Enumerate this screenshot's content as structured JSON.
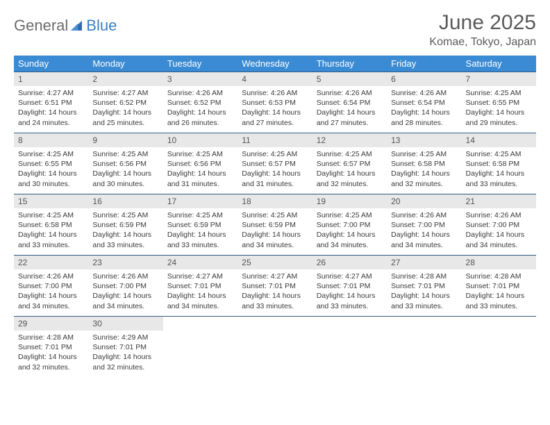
{
  "logo": {
    "general": "General",
    "blue": "Blue"
  },
  "title": "June 2025",
  "location": "Komae, Tokyo, Japan",
  "day_headers": [
    "Sunday",
    "Monday",
    "Tuesday",
    "Wednesday",
    "Thursday",
    "Friday",
    "Saturday"
  ],
  "colors": {
    "header_bg": "#3b8bd4",
    "header_text": "#ffffff",
    "row_border": "#2f5b84",
    "daynum_bg": "#e8e8e8",
    "body_text": "#3a3a3a",
    "title_text": "#5a5a5a",
    "logo_gray": "#6b6b6b",
    "logo_blue": "#3b7fc4"
  },
  "weeks": [
    [
      {
        "n": 1,
        "sunrise": "4:27 AM",
        "sunset": "6:51 PM",
        "daylight": "14 hours and 24 minutes."
      },
      {
        "n": 2,
        "sunrise": "4:27 AM",
        "sunset": "6:52 PM",
        "daylight": "14 hours and 25 minutes."
      },
      {
        "n": 3,
        "sunrise": "4:26 AM",
        "sunset": "6:52 PM",
        "daylight": "14 hours and 26 minutes."
      },
      {
        "n": 4,
        "sunrise": "4:26 AM",
        "sunset": "6:53 PM",
        "daylight": "14 hours and 27 minutes."
      },
      {
        "n": 5,
        "sunrise": "4:26 AM",
        "sunset": "6:54 PM",
        "daylight": "14 hours and 27 minutes."
      },
      {
        "n": 6,
        "sunrise": "4:26 AM",
        "sunset": "6:54 PM",
        "daylight": "14 hours and 28 minutes."
      },
      {
        "n": 7,
        "sunrise": "4:25 AM",
        "sunset": "6:55 PM",
        "daylight": "14 hours and 29 minutes."
      }
    ],
    [
      {
        "n": 8,
        "sunrise": "4:25 AM",
        "sunset": "6:55 PM",
        "daylight": "14 hours and 30 minutes."
      },
      {
        "n": 9,
        "sunrise": "4:25 AM",
        "sunset": "6:56 PM",
        "daylight": "14 hours and 30 minutes."
      },
      {
        "n": 10,
        "sunrise": "4:25 AM",
        "sunset": "6:56 PM",
        "daylight": "14 hours and 31 minutes."
      },
      {
        "n": 11,
        "sunrise": "4:25 AM",
        "sunset": "6:57 PM",
        "daylight": "14 hours and 31 minutes."
      },
      {
        "n": 12,
        "sunrise": "4:25 AM",
        "sunset": "6:57 PM",
        "daylight": "14 hours and 32 minutes."
      },
      {
        "n": 13,
        "sunrise": "4:25 AM",
        "sunset": "6:58 PM",
        "daylight": "14 hours and 32 minutes."
      },
      {
        "n": 14,
        "sunrise": "4:25 AM",
        "sunset": "6:58 PM",
        "daylight": "14 hours and 33 minutes."
      }
    ],
    [
      {
        "n": 15,
        "sunrise": "4:25 AM",
        "sunset": "6:58 PM",
        "daylight": "14 hours and 33 minutes."
      },
      {
        "n": 16,
        "sunrise": "4:25 AM",
        "sunset": "6:59 PM",
        "daylight": "14 hours and 33 minutes."
      },
      {
        "n": 17,
        "sunrise": "4:25 AM",
        "sunset": "6:59 PM",
        "daylight": "14 hours and 33 minutes."
      },
      {
        "n": 18,
        "sunrise": "4:25 AM",
        "sunset": "6:59 PM",
        "daylight": "14 hours and 34 minutes."
      },
      {
        "n": 19,
        "sunrise": "4:25 AM",
        "sunset": "7:00 PM",
        "daylight": "14 hours and 34 minutes."
      },
      {
        "n": 20,
        "sunrise": "4:26 AM",
        "sunset": "7:00 PM",
        "daylight": "14 hours and 34 minutes."
      },
      {
        "n": 21,
        "sunrise": "4:26 AM",
        "sunset": "7:00 PM",
        "daylight": "14 hours and 34 minutes."
      }
    ],
    [
      {
        "n": 22,
        "sunrise": "4:26 AM",
        "sunset": "7:00 PM",
        "daylight": "14 hours and 34 minutes."
      },
      {
        "n": 23,
        "sunrise": "4:26 AM",
        "sunset": "7:00 PM",
        "daylight": "14 hours and 34 minutes."
      },
      {
        "n": 24,
        "sunrise": "4:27 AM",
        "sunset": "7:01 PM",
        "daylight": "14 hours and 34 minutes."
      },
      {
        "n": 25,
        "sunrise": "4:27 AM",
        "sunset": "7:01 PM",
        "daylight": "14 hours and 33 minutes."
      },
      {
        "n": 26,
        "sunrise": "4:27 AM",
        "sunset": "7:01 PM",
        "daylight": "14 hours and 33 minutes."
      },
      {
        "n": 27,
        "sunrise": "4:28 AM",
        "sunset": "7:01 PM",
        "daylight": "14 hours and 33 minutes."
      },
      {
        "n": 28,
        "sunrise": "4:28 AM",
        "sunset": "7:01 PM",
        "daylight": "14 hours and 33 minutes."
      }
    ],
    [
      {
        "n": 29,
        "sunrise": "4:28 AM",
        "sunset": "7:01 PM",
        "daylight": "14 hours and 32 minutes."
      },
      {
        "n": 30,
        "sunrise": "4:29 AM",
        "sunset": "7:01 PM",
        "daylight": "14 hours and 32 minutes."
      },
      null,
      null,
      null,
      null,
      null
    ]
  ],
  "labels": {
    "sunrise": "Sunrise:",
    "sunset": "Sunset:",
    "daylight": "Daylight:"
  }
}
